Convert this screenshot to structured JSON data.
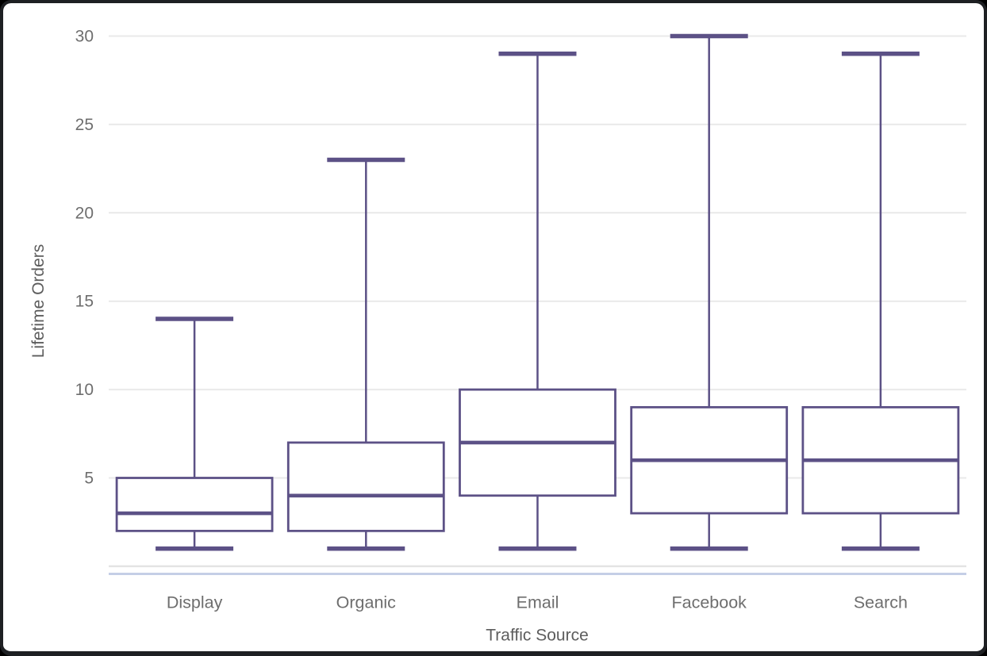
{
  "window": {
    "background": "#ffffff",
    "frame_color": "#1e2023"
  },
  "chart_data": {
    "type": "boxplot",
    "title": "",
    "xlabel": "Traffic Source",
    "ylabel": "Lifetime Orders",
    "categories": [
      "Display",
      "Organic",
      "Email",
      "Facebook",
      "Search"
    ],
    "series": [
      {
        "name": "Display",
        "min": 1,
        "q1": 2,
        "median": 3,
        "q3": 5,
        "max": 14
      },
      {
        "name": "Organic",
        "min": 1,
        "q1": 2,
        "median": 4,
        "q3": 7,
        "max": 23
      },
      {
        "name": "Email",
        "min": 1,
        "q1": 4,
        "median": 7,
        "q3": 10,
        "max": 29
      },
      {
        "name": "Facebook",
        "min": 1,
        "q1": 3,
        "median": 6,
        "q3": 9,
        "max": 30
      },
      {
        "name": "Search",
        "min": 1,
        "q1": 3,
        "median": 6,
        "q3": 9,
        "max": 29
      }
    ],
    "ylim": [
      0,
      30
    ],
    "yticks": [
      5,
      10,
      15,
      20,
      25,
      30
    ],
    "grid": true,
    "legend": false,
    "colors": {
      "box_stroke": "#5c5186",
      "box_fill": "#ffffff",
      "gridline": "#e9e9e9",
      "zero_line": "#e4e4e4",
      "axis_line": "#c5cee6",
      "tick_text": "#6e6e6e",
      "axis_title_text": "#5d5d5d"
    }
  }
}
